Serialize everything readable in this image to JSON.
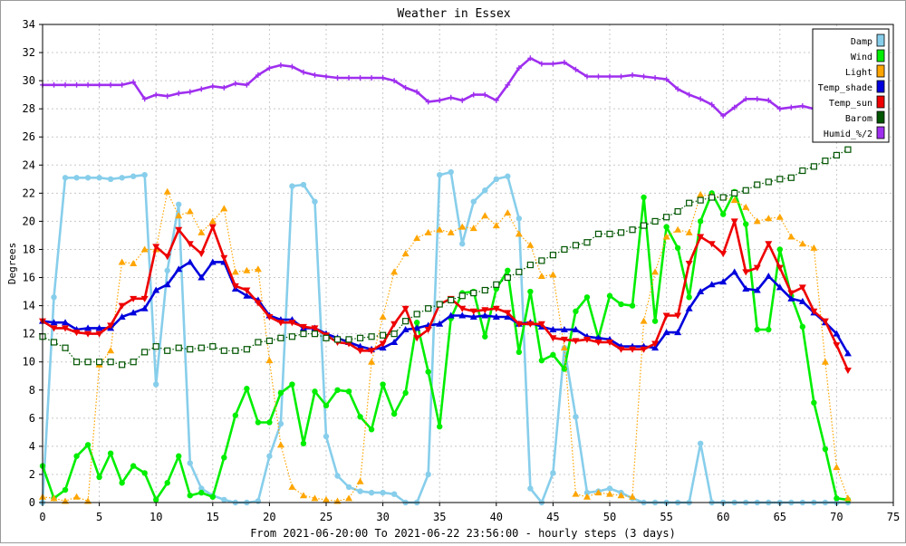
{
  "chart_data": {
    "type": "line",
    "title": "Weather in Essex",
    "xlabel": "From 2021-06-20:00 To 2021-06-22 23:56:00 - hourly steps (3 days)",
    "ylabel": "Degrees",
    "xlim": [
      0,
      75
    ],
    "ylim": [
      0,
      34
    ],
    "xticks": [
      0,
      5,
      10,
      15,
      20,
      25,
      30,
      35,
      40,
      45,
      50,
      55,
      60,
      65,
      70,
      75
    ],
    "yticks": [
      0,
      2,
      4,
      6,
      8,
      10,
      12,
      14,
      16,
      18,
      20,
      22,
      24,
      26,
      28,
      30,
      32,
      34
    ],
    "grid": true,
    "legend_position": "top-right",
    "series": [
      {
        "name": "Damp",
        "color": "#87ceeb",
        "marker": "circle",
        "line": "solid",
        "values": [
          0,
          14.6,
          23.1,
          23.1,
          23.1,
          23.1,
          23.0,
          23.1,
          23.2,
          23.3,
          8.4,
          16.5,
          21.2,
          2.8,
          1.0,
          0.5,
          0.2,
          0,
          0,
          0.1,
          3.3,
          5.6,
          22.5,
          22.6,
          21.4,
          4.7,
          1.9,
          1.1,
          0.8,
          0.7,
          0.7,
          0.6,
          0,
          0,
          2.0,
          23.3,
          23.5,
          18.4,
          21.4,
          22.2,
          23.0,
          23.2,
          20.2,
          1.0,
          0,
          2.1,
          11.0,
          6.1,
          0.7,
          0.8,
          1.0,
          0.7,
          0.3,
          0,
          0,
          0,
          0,
          0,
          4.2,
          0,
          0,
          0,
          0,
          0,
          0,
          0,
          0,
          0,
          0,
          0,
          0,
          0
        ]
      },
      {
        "name": "Wind",
        "color": "#00ee00",
        "marker": "circle",
        "line": "solid",
        "values": [
          2.6,
          0.3,
          0.9,
          3.3,
          4.1,
          1.8,
          3.5,
          1.4,
          2.6,
          2.1,
          0.2,
          1.4,
          3.3,
          0.5,
          0.7,
          0.4,
          3.2,
          6.2,
          8.1,
          5.7,
          5.7,
          7.8,
          8.4,
          4.2,
          7.9,
          6.9,
          8.0,
          7.9,
          6.1,
          5.2,
          8.4,
          6.3,
          7.8,
          12.8,
          9.3,
          5.4,
          13.1,
          14.9,
          15.0,
          11.8,
          15.2,
          16.5,
          10.7,
          15.0,
          10.1,
          10.5,
          9.5,
          13.6,
          14.6,
          11.7,
          14.7,
          14.1,
          14.0,
          21.7,
          12.9,
          19.6,
          18.1,
          14.6,
          20.0,
          22.0,
          20.5,
          22.1,
          19.8,
          12.3,
          12.3,
          18.0,
          14.7,
          12.5,
          7.1,
          3.8,
          0.3,
          0.2
        ]
      },
      {
        "name": "Light",
        "color": "#ffa500",
        "marker": "triangle",
        "line": "dotted",
        "values": [
          0.4,
          0.3,
          0.1,
          0.4,
          0.1,
          9.8,
          10.8,
          17.1,
          17.0,
          18.0,
          18.0,
          22.1,
          20.4,
          20.7,
          19.2,
          20.0,
          20.9,
          16.4,
          16.5,
          16.6,
          10.1,
          4.1,
          1.1,
          0.5,
          0.3,
          0.2,
          0.1,
          0.3,
          1.5,
          10.0,
          13.2,
          16.4,
          17.7,
          18.8,
          19.2,
          19.4,
          19.2,
          19.6,
          19.5,
          20.4,
          19.7,
          20.6,
          19.1,
          18.3,
          16.1,
          16.2,
          11.0,
          0.6,
          0.4,
          0.7,
          0.6,
          0.5,
          0.4,
          12.9,
          16.4,
          18.9,
          19.4,
          19.2,
          21.9,
          21.8,
          21.7,
          21.5,
          21.0,
          20.0,
          20.2,
          20.3,
          18.9,
          18.4,
          18.1,
          10.0,
          2.5,
          0.3
        ]
      },
      {
        "name": "Temp_shade",
        "color": "#0000dd",
        "marker": "triangle",
        "line": "solid",
        "values": [
          12.9,
          12.8,
          12.8,
          12.3,
          12.4,
          12.4,
          12.4,
          13.2,
          13.5,
          13.8,
          15.1,
          15.5,
          16.6,
          17.1,
          16.0,
          17.1,
          17.1,
          15.2,
          14.7,
          14.4,
          13.3,
          13.0,
          13.0,
          12.4,
          12.4,
          12.0,
          11.7,
          11.4,
          11.1,
          10.9,
          11.0,
          11.4,
          12.3,
          12.4,
          12.6,
          12.7,
          13.3,
          13.3,
          13.2,
          13.3,
          13.2,
          13.2,
          12.7,
          12.8,
          12.5,
          12.3,
          12.3,
          12.3,
          11.8,
          11.7,
          11.6,
          11.1,
          11.1,
          11.1,
          11.0,
          12.1,
          12.1,
          13.8,
          15.0,
          15.5,
          15.7,
          16.4,
          15.2,
          15.1,
          16.1,
          15.3,
          14.5,
          14.3,
          13.5,
          12.8,
          12.0,
          10.6
        ]
      },
      {
        "name": "Temp_sun",
        "color": "#ee0000",
        "marker": "triangle-down",
        "line": "solid",
        "values": [
          12.9,
          12.4,
          12.4,
          12.1,
          12.0,
          12.0,
          12.6,
          14.0,
          14.5,
          14.5,
          18.2,
          17.5,
          19.4,
          18.4,
          17.7,
          19.6,
          17.4,
          15.4,
          15.1,
          14.2,
          13.2,
          12.8,
          12.8,
          12.5,
          12.4,
          11.9,
          11.4,
          11.3,
          10.8,
          10.8,
          11.3,
          12.7,
          13.8,
          11.7,
          12.3,
          14.1,
          14.5,
          13.8,
          13.6,
          13.7,
          13.8,
          13.5,
          12.7,
          12.7,
          12.7,
          11.7,
          11.6,
          11.5,
          11.6,
          11.4,
          11.4,
          10.9,
          10.9,
          10.9,
          11.3,
          13.3,
          13.3,
          17.0,
          18.9,
          18.4,
          17.7,
          20.0,
          16.4,
          16.7,
          18.4,
          16.7,
          14.9,
          15.3,
          13.6,
          12.9,
          11.2,
          9.4
        ]
      },
      {
        "name": "Barom",
        "color": "#005500",
        "marker": "square",
        "line": "dotted",
        "values": [
          11.8,
          11.4,
          11.0,
          10.0,
          10.0,
          10.0,
          10.0,
          9.8,
          10.0,
          10.7,
          11.1,
          10.8,
          11.0,
          10.9,
          11.0,
          11.1,
          10.8,
          10.8,
          10.9,
          11.4,
          11.5,
          11.7,
          11.8,
          12.0,
          12.0,
          11.7,
          11.6,
          11.6,
          11.7,
          11.8,
          11.9,
          12.0,
          12.9,
          13.4,
          13.8,
          14.1,
          14.4,
          14.7,
          14.9,
          15.1,
          15.5,
          16.0,
          16.4,
          16.9,
          17.2,
          17.6,
          18.0,
          18.3,
          18.5,
          19.1,
          19.1,
          19.2,
          19.4,
          19.7,
          20.0,
          20.3,
          20.7,
          21.3,
          21.5,
          21.7,
          21.7,
          22.0,
          22.2,
          22.6,
          22.8,
          23.0,
          23.1,
          23.6,
          23.9,
          24.3,
          24.7,
          25.1
        ]
      },
      {
        "name": "Humid_%/2",
        "color": "#9f2fef",
        "marker": "cross",
        "line": "solid",
        "values": [
          29.7,
          29.7,
          29.7,
          29.7,
          29.7,
          29.7,
          29.7,
          29.7,
          29.9,
          28.7,
          29.0,
          28.9,
          29.1,
          29.2,
          29.4,
          29.6,
          29.5,
          29.8,
          29.7,
          30.4,
          30.9,
          31.1,
          31.0,
          30.6,
          30.4,
          30.3,
          30.2,
          30.2,
          30.2,
          30.2,
          30.2,
          30.0,
          29.5,
          29.2,
          28.5,
          28.6,
          28.8,
          28.6,
          29.0,
          29.0,
          28.6,
          29.7,
          30.9,
          31.6,
          31.2,
          31.2,
          31.3,
          30.8,
          30.3,
          30.3,
          30.3,
          30.3,
          30.4,
          30.3,
          30.2,
          30.1,
          29.4,
          29.0,
          28.7,
          28.3,
          27.5,
          28.1,
          28.7,
          28.7,
          28.6,
          28.0,
          28.1,
          28.2,
          28.0,
          28.4,
          28.3,
          28.0
        ]
      }
    ]
  }
}
